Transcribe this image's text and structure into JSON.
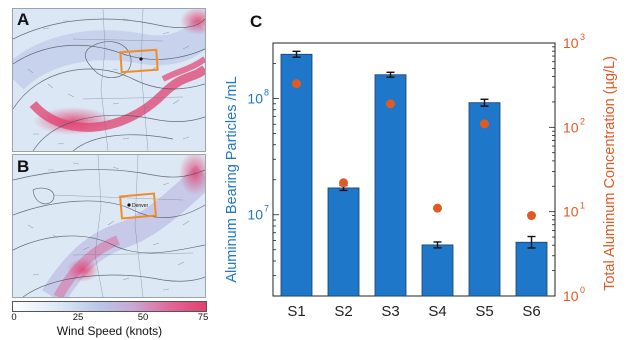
{
  "panels": {
    "a_label": "A",
    "b_label": "B",
    "c_label": "C",
    "b_city_label": "Denver"
  },
  "colorbar": {
    "label": "Wind Speed (knots)",
    "ticks": [
      "0",
      "25",
      "50",
      "75"
    ],
    "colors": [
      "#ffffff",
      "#d8e7f6",
      "#b9c6e6",
      "#c9a8d6",
      "#de6c9e",
      "#e2416f"
    ]
  },
  "chart_data": {
    "type": "bar",
    "categories": [
      "S1",
      "S2",
      "S3",
      "S4",
      "S5",
      "S6"
    ],
    "series": [
      {
        "axis": "left",
        "kind": "bar",
        "color": "#1f77c9",
        "values": [
          240000000,
          17000000,
          160000000,
          5500000,
          92000000,
          5800000
        ],
        "error": [
          0.06,
          0.05,
          0.05,
          0.06,
          0.07,
          0.12
        ]
      },
      {
        "axis": "right",
        "kind": "scatter",
        "color": "#e05a24",
        "values": [
          330,
          22,
          190,
          11,
          110,
          9
        ]
      }
    ],
    "ylabel_left": "Aluminum Bearing   Particles /mL",
    "ylabel_right": "Total Aluminum   Concentration  (µg/L)",
    "left_scale": "log",
    "right_scale": "log",
    "ylim_left": [
      2000000,
      300000000
    ],
    "ylim_right": [
      1,
      1000
    ],
    "left_ticks": [
      {
        "value": 10000000,
        "base": "10",
        "exp": "7"
      },
      {
        "value": 100000000,
        "base": "10",
        "exp": "8"
      }
    ],
    "right_ticks": [
      {
        "value": 1,
        "base": "10",
        "exp": "0"
      },
      {
        "value": 10,
        "base": "10",
        "exp": "1"
      },
      {
        "value": 100,
        "base": "10",
        "exp": "2"
      },
      {
        "value": 1000,
        "base": "10",
        "exp": "3"
      }
    ],
    "left_color": "#1f77c9",
    "right_color": "#e05a24"
  }
}
